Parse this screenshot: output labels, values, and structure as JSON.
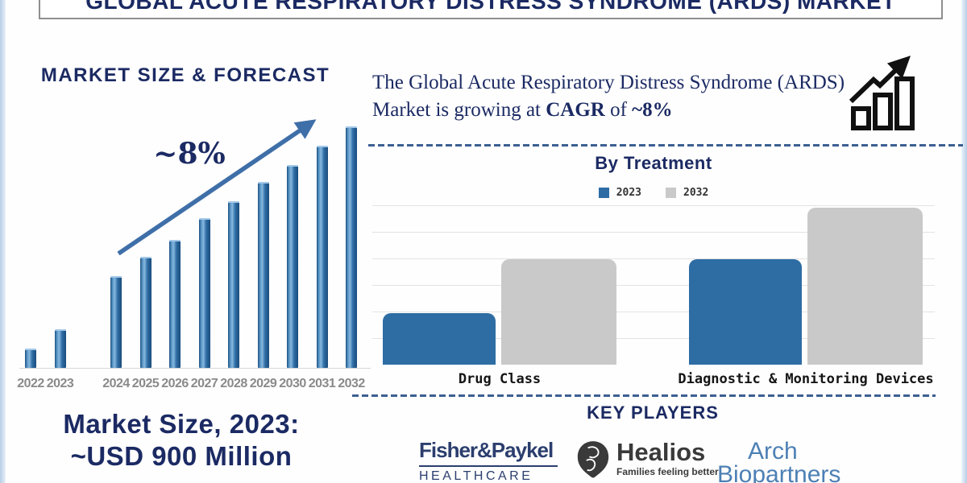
{
  "header": {
    "title": "GLOBAL ACUTE RESPIRATORY DISTRESS SYNDROME (ARDS) MARKET"
  },
  "forecast": {
    "heading": "MARKET SIZE & FORECAST",
    "growth_label": "~8%",
    "market_size_line1": "Market Size, 2023:",
    "market_size_line2": "~USD 900 Million"
  },
  "cagr_statement": {
    "text_before": "The Global Acute Respiratory Distress Syndrome (ARDS) Market is growing at ",
    "bold_term": "CAGR",
    "text_mid": " of ",
    "bold_value": "~8%"
  },
  "treatment": {
    "heading": "By Treatment",
    "legend": [
      {
        "label": "2023",
        "color": "#2e6da4"
      },
      {
        "label": "2032",
        "color": "#c9c9c9"
      }
    ]
  },
  "key_players": {
    "heading": "KEY PLAYERS",
    "fisher_paykel": {
      "brand": "Fisher&Paykel",
      "division": "HEALTHCARE"
    },
    "healios": {
      "brand": "Healios",
      "tagline": "Families feeling better"
    },
    "arch_biopartners": {
      "line1": "Arch",
      "line2": "Biopartners"
    }
  },
  "chart_data": [
    {
      "type": "bar",
      "title": "Market Size & Forecast",
      "categories": [
        "2022",
        "2023",
        "2024",
        "2025",
        "2026",
        "2027",
        "2028",
        "2029",
        "2030",
        "2031",
        "2032"
      ],
      "values": [
        8,
        16,
        38,
        46,
        53,
        62,
        69,
        77,
        84,
        92,
        100
      ],
      "ylabel": "",
      "xlabel": "",
      "y_axis_labels": false,
      "value_units": "relative height, % of tallest bar (no numeric axis shown)",
      "annotation": "~8%",
      "annotation_meaning": "CAGR trend arrow over bars",
      "layout_note": "x-axis gap between 2023 and 2024; bars styled as 3D blue columns",
      "bar_color": "#2e6da4"
    },
    {
      "type": "bar",
      "title": "By Treatment",
      "categories": [
        "Drug Class",
        "Diagnostic & Monitoring Devices"
      ],
      "series": [
        {
          "name": "2023",
          "values": [
            33,
            67
          ],
          "color": "#2e6da4"
        },
        {
          "name": "2032",
          "values": [
            67,
            100
          ],
          "color": "#c9c9c9"
        }
      ],
      "value_units": "relative height, % of tallest bar (no numeric axis shown)",
      "legend_position": "top center",
      "grid": "horizontal light gray lines",
      "ylim": [
        0,
        100
      ]
    }
  ],
  "colors": {
    "navy_text": "#1b2a63",
    "bar_blue": "#2e6da4",
    "bar_gray": "#c9c9c9",
    "trend_arrow": "#3f6fa8",
    "dashed_divider": "#3c5f92",
    "year_labels": "#8a8a8a",
    "fisher_paykel_navy": "#2b3e6e",
    "healios_charcoal": "#3a3a3a",
    "arch_blue": "#4d80b5"
  }
}
